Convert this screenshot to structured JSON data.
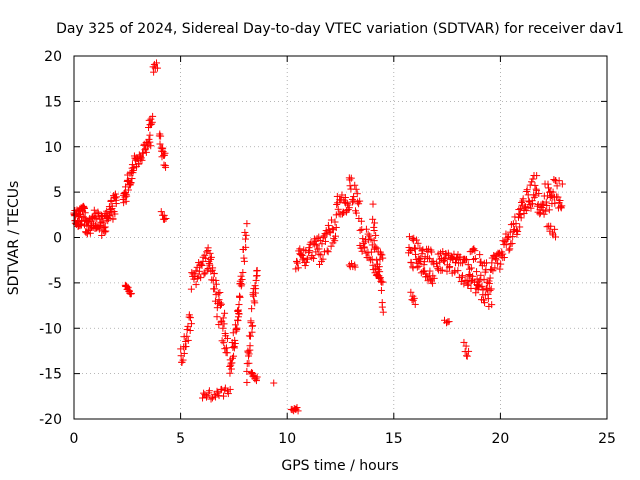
{
  "chart_data": {
    "type": "scatter",
    "title": "Day 325 of 2024, Sidereal Day-to-day VTEC variation (SDTVAR) for receiver dav1",
    "xlabel": "GPS time / hours",
    "ylabel": "SDTVAR / TECUs",
    "xlim": [
      0,
      25
    ],
    "ylim": [
      -20,
      20
    ],
    "xticks": [
      "0",
      "5",
      "10",
      "15",
      "20",
      "25"
    ],
    "yticks": [
      "-20",
      "-15",
      "-10",
      "-5",
      "0",
      "5",
      "10",
      "15",
      "20"
    ],
    "grid": true,
    "marker": "+",
    "series_color": "#ff0000",
    "segments": [
      {
        "x0": 0.0,
        "x1": 0.5,
        "y0": 2.0,
        "y1": 2.5,
        "spread": 2.0,
        "n": 45
      },
      {
        "x0": 0.5,
        "x1": 1.3,
        "y0": 1.5,
        "y1": 2.0,
        "spread": 2.5,
        "n": 45
      },
      {
        "x0": 1.3,
        "x1": 2.0,
        "y0": 1.0,
        "y1": 4.0,
        "spread": 2.5,
        "n": 40
      },
      {
        "x0": 2.3,
        "x1": 2.8,
        "y0": 4.0,
        "y1": 8.0,
        "spread": 2.5,
        "n": 30
      },
      {
        "x0": 2.4,
        "x1": 2.7,
        "y0": -5.5,
        "y1": -6.0,
        "spread": 0.6,
        "n": 14
      },
      {
        "x0": 2.8,
        "x1": 3.6,
        "y0": 8.0,
        "y1": 11.0,
        "spread": 2.0,
        "n": 30
      },
      {
        "x0": 3.5,
        "x1": 3.7,
        "y0": 12.5,
        "y1": 13.0,
        "spread": 0.8,
        "n": 8
      },
      {
        "x0": 3.7,
        "x1": 3.9,
        "y0": 18.5,
        "y1": 19.0,
        "spread": 0.8,
        "n": 6
      },
      {
        "x0": 4.0,
        "x1": 4.3,
        "y0": 11.0,
        "y1": 8.0,
        "spread": 2.0,
        "n": 16
      },
      {
        "x0": 4.1,
        "x1": 4.3,
        "y0": 2.5,
        "y1": 2.0,
        "spread": 0.8,
        "n": 6
      },
      {
        "x0": 5.0,
        "x1": 5.5,
        "y0": -13.5,
        "y1": -9.0,
        "spread": 2.5,
        "n": 20
      },
      {
        "x0": 5.5,
        "x1": 6.3,
        "y0": -5.0,
        "y1": -2.5,
        "spread": 2.5,
        "n": 28
      },
      {
        "x0": 6.3,
        "x1": 7.2,
        "y0": -2.0,
        "y1": -12.0,
        "spread": 4.5,
        "n": 45
      },
      {
        "x0": 6.0,
        "x1": 7.3,
        "y0": -17.5,
        "y1": -17.0,
        "spread": 1.0,
        "n": 22
      },
      {
        "x0": 7.3,
        "x1": 7.8,
        "y0": -15.0,
        "y1": -6.0,
        "spread": 3.0,
        "n": 30
      },
      {
        "x0": 7.7,
        "x1": 8.1,
        "y0": -8.0,
        "y1": 1.0,
        "spread": 3.0,
        "n": 20
      },
      {
        "x0": 8.1,
        "x1": 8.6,
        "y0": -15.0,
        "y1": -2.0,
        "spread": 4.0,
        "n": 32
      },
      {
        "x0": 8.3,
        "x1": 8.6,
        "y0": -15.2,
        "y1": -15.5,
        "spread": 0.8,
        "n": 10
      },
      {
        "x0": 9.3,
        "x1": 9.4,
        "y0": -16.0,
        "y1": -16.2,
        "spread": 0.2,
        "n": 1
      },
      {
        "x0": 10.2,
        "x1": 10.5,
        "y0": -18.8,
        "y1": -19.0,
        "spread": 0.5,
        "n": 8
      },
      {
        "x0": 10.4,
        "x1": 11.5,
        "y0": -2.5,
        "y1": -1.0,
        "spread": 2.5,
        "n": 38
      },
      {
        "x0": 11.5,
        "x1": 12.3,
        "y0": -2.0,
        "y1": 1.5,
        "spread": 3.0,
        "n": 30
      },
      {
        "x0": 12.3,
        "x1": 12.9,
        "y0": 3.5,
        "y1": 4.0,
        "spread": 2.5,
        "n": 24
      },
      {
        "x0": 12.9,
        "x1": 13.4,
        "y0": 6.0,
        "y1": 3.0,
        "spread": 3.0,
        "n": 18
      },
      {
        "x0": 12.9,
        "x1": 13.2,
        "y0": -3.0,
        "y1": -3.2,
        "spread": 0.5,
        "n": 6
      },
      {
        "x0": 13.4,
        "x1": 14.5,
        "y0": 1.0,
        "y1": -4.0,
        "spread": 4.0,
        "n": 45
      },
      {
        "x0": 14.0,
        "x1": 14.5,
        "y0": 3.0,
        "y1": -8.5,
        "spread": 3.0,
        "n": 20
      },
      {
        "x0": 15.7,
        "x1": 16.9,
        "y0": -1.0,
        "y1": -3.5,
        "spread": 4.0,
        "n": 60
      },
      {
        "x0": 15.8,
        "x1": 16.0,
        "y0": -6.5,
        "y1": -7.0,
        "spread": 1.0,
        "n": 6
      },
      {
        "x0": 17.0,
        "x1": 17.9,
        "y0": -2.5,
        "y1": -3.0,
        "spread": 2.5,
        "n": 34
      },
      {
        "x0": 17.4,
        "x1": 17.6,
        "y0": -9.0,
        "y1": -9.5,
        "spread": 0.8,
        "n": 4
      },
      {
        "x0": 17.9,
        "x1": 18.5,
        "y0": -3.0,
        "y1": -4.0,
        "spread": 3.0,
        "n": 26
      },
      {
        "x0": 18.3,
        "x1": 18.5,
        "y0": -12.0,
        "y1": -13.0,
        "spread": 1.0,
        "n": 6
      },
      {
        "x0": 18.5,
        "x1": 19.6,
        "y0": -3.0,
        "y1": -5.5,
        "spread": 5.0,
        "n": 60
      },
      {
        "x0": 19.6,
        "x1": 20.1,
        "y0": -3.0,
        "y1": -2.5,
        "spread": 2.0,
        "n": 18
      },
      {
        "x0": 20.1,
        "x1": 20.9,
        "y0": -1.5,
        "y1": 2.0,
        "spread": 2.5,
        "n": 28
      },
      {
        "x0": 20.9,
        "x1": 21.7,
        "y0": 2.0,
        "y1": 6.0,
        "spread": 3.0,
        "n": 34
      },
      {
        "x0": 21.7,
        "x1": 22.9,
        "y0": 4.0,
        "y1": 5.0,
        "spread": 3.5,
        "n": 46
      },
      {
        "x0": 22.2,
        "x1": 22.6,
        "y0": 1.0,
        "y1": 0.5,
        "spread": 1.0,
        "n": 8
      }
    ]
  }
}
